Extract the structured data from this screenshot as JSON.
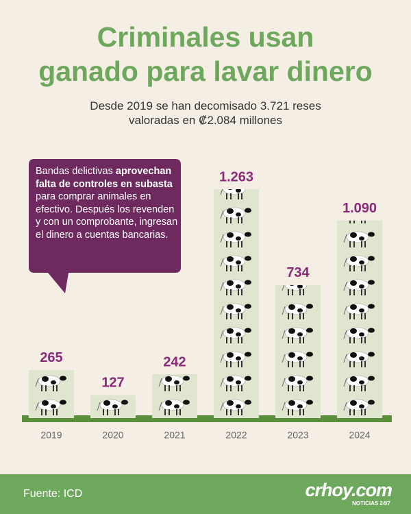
{
  "chart_data": {
    "type": "bar",
    "title": [
      "Criminales usan",
      "ganado para lavar dinero"
    ],
    "subtitle": [
      "Desde 2019 se han decomisado 3.721 reses",
      "valoradas en ₡2.084 millones"
    ],
    "annotation": [
      "Bandas delictivas ",
      "aprovechan falta de controles en subasta",
      " para comprar animales en efectivo. Después los revenden y con un comprobante, ingresan el dinero a cuentas bancarias."
    ],
    "categories": [
      "2019",
      "2020",
      "2021",
      "2022",
      "2023",
      "2024"
    ],
    "values": [
      265,
      127,
      242,
      1263,
      734,
      1090
    ],
    "value_labels": [
      "265",
      "127",
      "242",
      "1.263",
      "734",
      "1.090"
    ],
    "color": "#dfe5cf",
    "label_color": "#8a2a78",
    "source": "Fuente: ICD",
    "brand": "crhoy.com",
    "brand_tagline": "NOTICIAS 24/7"
  }
}
